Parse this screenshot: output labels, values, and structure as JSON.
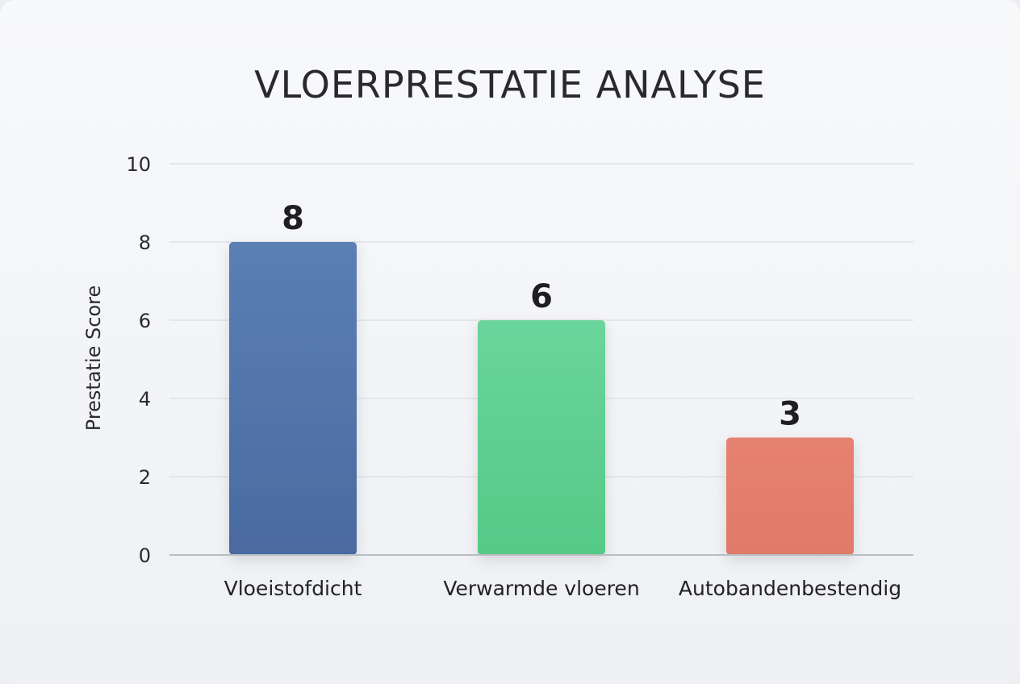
{
  "chart_data": {
    "type": "bar",
    "title": "VLOERPRESTATIE ANALYSE",
    "xlabel": "",
    "ylabel": "Prestatie Score",
    "categories": [
      "Vloeistofdicht",
      "Verwarmde vloeren",
      "Autobandenbestendig"
    ],
    "values": [
      8,
      6,
      3
    ],
    "data_labels": [
      "8",
      "6",
      "3"
    ],
    "ylim": [
      0,
      10
    ],
    "yticks": [
      "0",
      "2",
      "4",
      "6",
      "8",
      "10"
    ],
    "grid": true,
    "legend": "none",
    "colors": [
      "#5074a8",
      "#5fd08e",
      "#e47c6c"
    ]
  }
}
